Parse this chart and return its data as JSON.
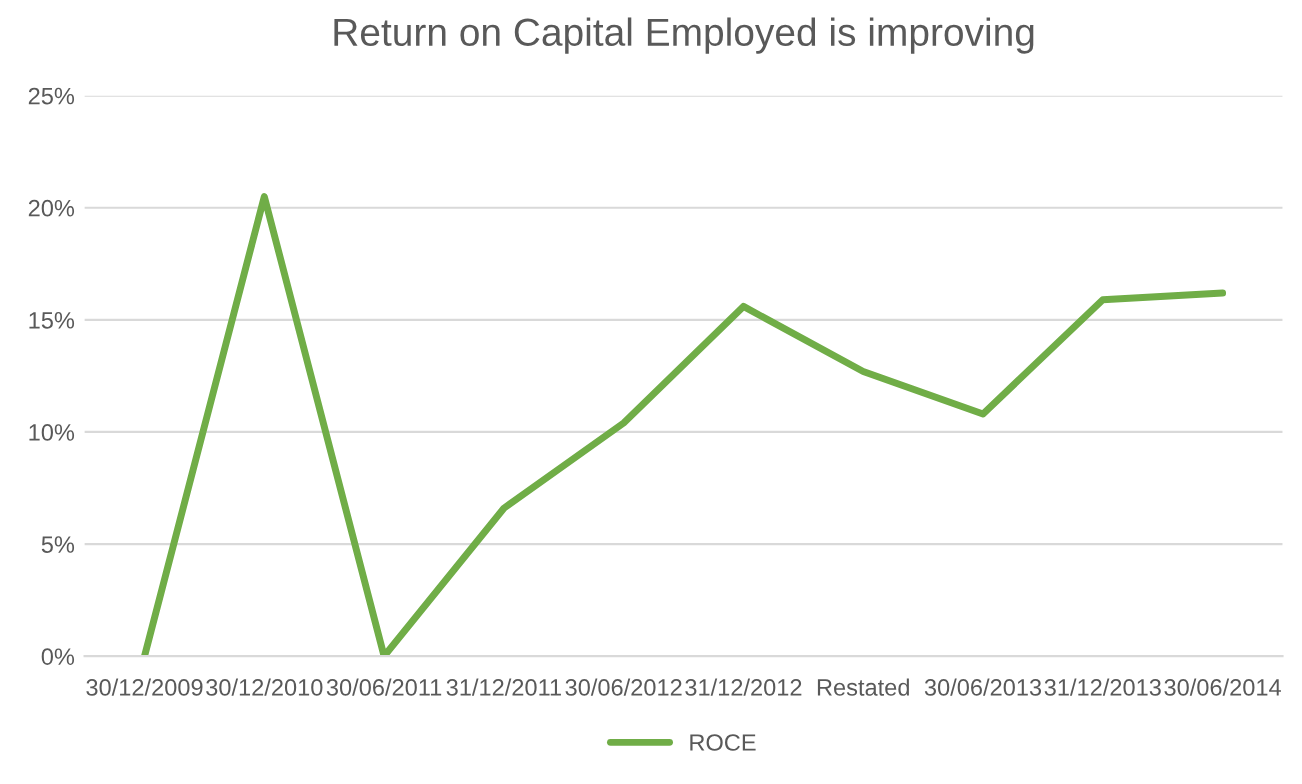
{
  "chart_data": {
    "type": "line",
    "title": "Return on Capital Employed is improving",
    "categories": [
      "30/12/2009",
      "30/12/2010",
      "30/06/2011",
      "31/12/2011",
      "30/06/2012",
      "31/12/2012",
      "Restated",
      "30/06/2013",
      "31/12/2013",
      "30/06/2014"
    ],
    "series": [
      {
        "name": "ROCE",
        "color": "#70ad47",
        "values": [
          0,
          20.5,
          0,
          6.6,
          10.4,
          15.6,
          12.7,
          10.8,
          15.9,
          16.2
        ]
      }
    ],
    "ylim": [
      0,
      25
    ],
    "yticks": [
      {
        "value": 0,
        "label": "0%"
      },
      {
        "value": 5,
        "label": "5%"
      },
      {
        "value": 10,
        "label": "10%"
      },
      {
        "value": 15,
        "label": "15%"
      },
      {
        "value": 20,
        "label": "20%"
      },
      {
        "value": 25,
        "label": "25%"
      }
    ],
    "grid": "y",
    "legend": "bottom",
    "marker": "none",
    "line_style": "solid"
  }
}
